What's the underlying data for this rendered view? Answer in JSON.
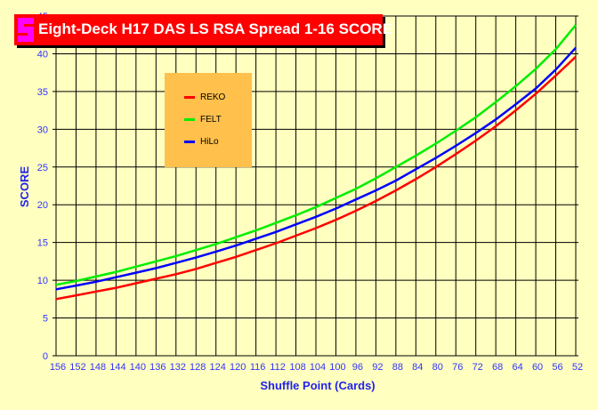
{
  "chart_data": {
    "type": "line",
    "title": "Eight-Deck H17 DAS LS RSA Spread 1-16 SCORE",
    "xlabel": "Shuffle Point (Cards)",
    "ylabel": "SCORE",
    "x": [
      156,
      152,
      148,
      144,
      140,
      136,
      132,
      128,
      124,
      120,
      116,
      112,
      108,
      104,
      100,
      96,
      92,
      88,
      84,
      80,
      76,
      72,
      68,
      64,
      60,
      56,
      52
    ],
    "xlim": [
      156,
      52
    ],
    "ylim": [
      0,
      45
    ],
    "yticks": [
      0,
      5,
      10,
      15,
      20,
      25,
      30,
      35,
      40,
      45
    ],
    "grid": true,
    "legend_position": "upper-left-inside",
    "series": [
      {
        "name": "REKO",
        "color": "#FF0000",
        "values": [
          7.5,
          8.0,
          8.5,
          9.0,
          9.6,
          10.2,
          10.8,
          11.5,
          12.3,
          13.1,
          14.0,
          14.9,
          15.9,
          16.9,
          18.0,
          19.2,
          20.5,
          21.9,
          23.4,
          25.0,
          26.7,
          28.5,
          30.4,
          32.5,
          34.7,
          37.1,
          39.6
        ]
      },
      {
        "name": "FELT",
        "color": "#00EE00",
        "values": [
          9.4,
          9.9,
          10.5,
          11.1,
          11.8,
          12.5,
          13.2,
          14.0,
          14.8,
          15.7,
          16.6,
          17.6,
          18.6,
          19.7,
          20.9,
          22.1,
          23.5,
          25.0,
          26.5,
          28.1,
          29.8,
          31.6,
          33.6,
          35.7,
          38.0,
          40.6,
          43.8
        ]
      },
      {
        "name": "HiLo",
        "color": "#0000FF",
        "values": [
          8.8,
          9.3,
          9.8,
          10.4,
          11.0,
          11.6,
          12.3,
          13.0,
          13.8,
          14.6,
          15.5,
          16.4,
          17.4,
          18.4,
          19.5,
          20.7,
          21.9,
          23.2,
          24.7,
          26.2,
          27.8,
          29.5,
          31.3,
          33.3,
          35.4,
          37.9,
          40.8
        ]
      }
    ]
  },
  "colors": {
    "background": "#FFFFC0",
    "title_bg": "#FF0000",
    "legend_bg": "#FFC04C",
    "logo": "#FF00FF"
  }
}
